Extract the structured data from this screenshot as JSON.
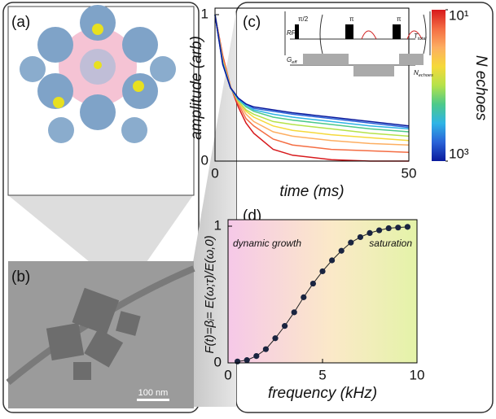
{
  "panels": {
    "a": "(a)",
    "b": "(b)",
    "c": "(c)",
    "d": "(d)",
    "scale_bar": "100 nm"
  },
  "chart_data": [
    {
      "type": "line",
      "xlabel": "time (ms)",
      "ylabel": "amplitude (arb)",
      "x": [
        0,
        2,
        4,
        6,
        8,
        10,
        15,
        20,
        30,
        40,
        50
      ],
      "xlim": [
        0,
        50
      ],
      "ylim": [
        0,
        1
      ],
      "xticks": [
        0,
        50
      ],
      "yticks": [
        0,
        1
      ],
      "series": [
        {
          "color": "#d7191c",
          "values": [
            1,
            0.72,
            0.51,
            0.37,
            0.26,
            0.19,
            0.08,
            0.04,
            0.01,
            0,
            0
          ]
        },
        {
          "color": "#f46d43",
          "values": [
            1,
            0.71,
            0.51,
            0.39,
            0.29,
            0.24,
            0.15,
            0.11,
            0.08,
            0.07,
            0.06
          ]
        },
        {
          "color": "#fdae61",
          "values": [
            1,
            0.69,
            0.51,
            0.4,
            0.32,
            0.27,
            0.2,
            0.17,
            0.14,
            0.12,
            0.11
          ]
        },
        {
          "color": "#f5d93a",
          "values": [
            1,
            0.68,
            0.5,
            0.41,
            0.34,
            0.3,
            0.24,
            0.21,
            0.18,
            0.16,
            0.14
          ]
        },
        {
          "color": "#b5e24a",
          "values": [
            1,
            0.68,
            0.5,
            0.41,
            0.35,
            0.32,
            0.27,
            0.25,
            0.22,
            0.19,
            0.17
          ]
        },
        {
          "color": "#4cc98a",
          "values": [
            1,
            0.67,
            0.5,
            0.42,
            0.37,
            0.34,
            0.3,
            0.28,
            0.25,
            0.22,
            0.2
          ]
        },
        {
          "color": "#2fb4e6",
          "values": [
            1,
            0.67,
            0.5,
            0.42,
            0.38,
            0.35,
            0.32,
            0.3,
            0.27,
            0.24,
            0.22
          ]
        },
        {
          "color": "#2a63d8",
          "values": [
            1,
            0.66,
            0.5,
            0.43,
            0.39,
            0.36,
            0.34,
            0.32,
            0.29,
            0.26,
            0.23
          ]
        },
        {
          "color": "#0a1a9c",
          "values": [
            1,
            0.66,
            0.5,
            0.43,
            0.39,
            0.37,
            0.35,
            0.33,
            0.3,
            0.27,
            0.24
          ]
        }
      ],
      "colorbar": {
        "label": "N echoes",
        "log": true,
        "lim": [
          10,
          1000
        ],
        "ticks": [
          {
            "value": 10,
            "label": "10¹"
          },
          {
            "value": 1000,
            "label": "10³"
          }
        ]
      },
      "inset": {
        "rf": "RF",
        "pulses": [
          "π/2",
          "π",
          "π"
        ],
        "g": {
          "main": "G",
          "sub": "eff"
        },
        "t": {
          "main": "T",
          "sub": "total"
        },
        "n": {
          "main": "N",
          "sub": "echoes"
        }
      }
    },
    {
      "type": "scatter",
      "xlabel": "frequency (kHz)",
      "ylabel": "F(t)=βᵢ= E(ω;τ)/E(ω,0)",
      "x": [
        0.5,
        1,
        1.5,
        2,
        2.5,
        3,
        3.5,
        4,
        4.5,
        5,
        5.5,
        6,
        6.5,
        7,
        7.5,
        8,
        8.5,
        9,
        9.5
      ],
      "values": [
        0.01,
        0.02,
        0.05,
        0.1,
        0.18,
        0.27,
        0.37,
        0.48,
        0.58,
        0.67,
        0.75,
        0.82,
        0.88,
        0.92,
        0.95,
        0.97,
        0.985,
        0.99,
        0.995
      ],
      "color": "#1a2440",
      "xlim": [
        0,
        10
      ],
      "ylim": [
        0,
        1
      ],
      "xticks": [
        0,
        5,
        10
      ],
      "yticks": [
        0,
        1
      ],
      "annotations": [
        "dynamic growth",
        "saturation"
      ]
    }
  ]
}
